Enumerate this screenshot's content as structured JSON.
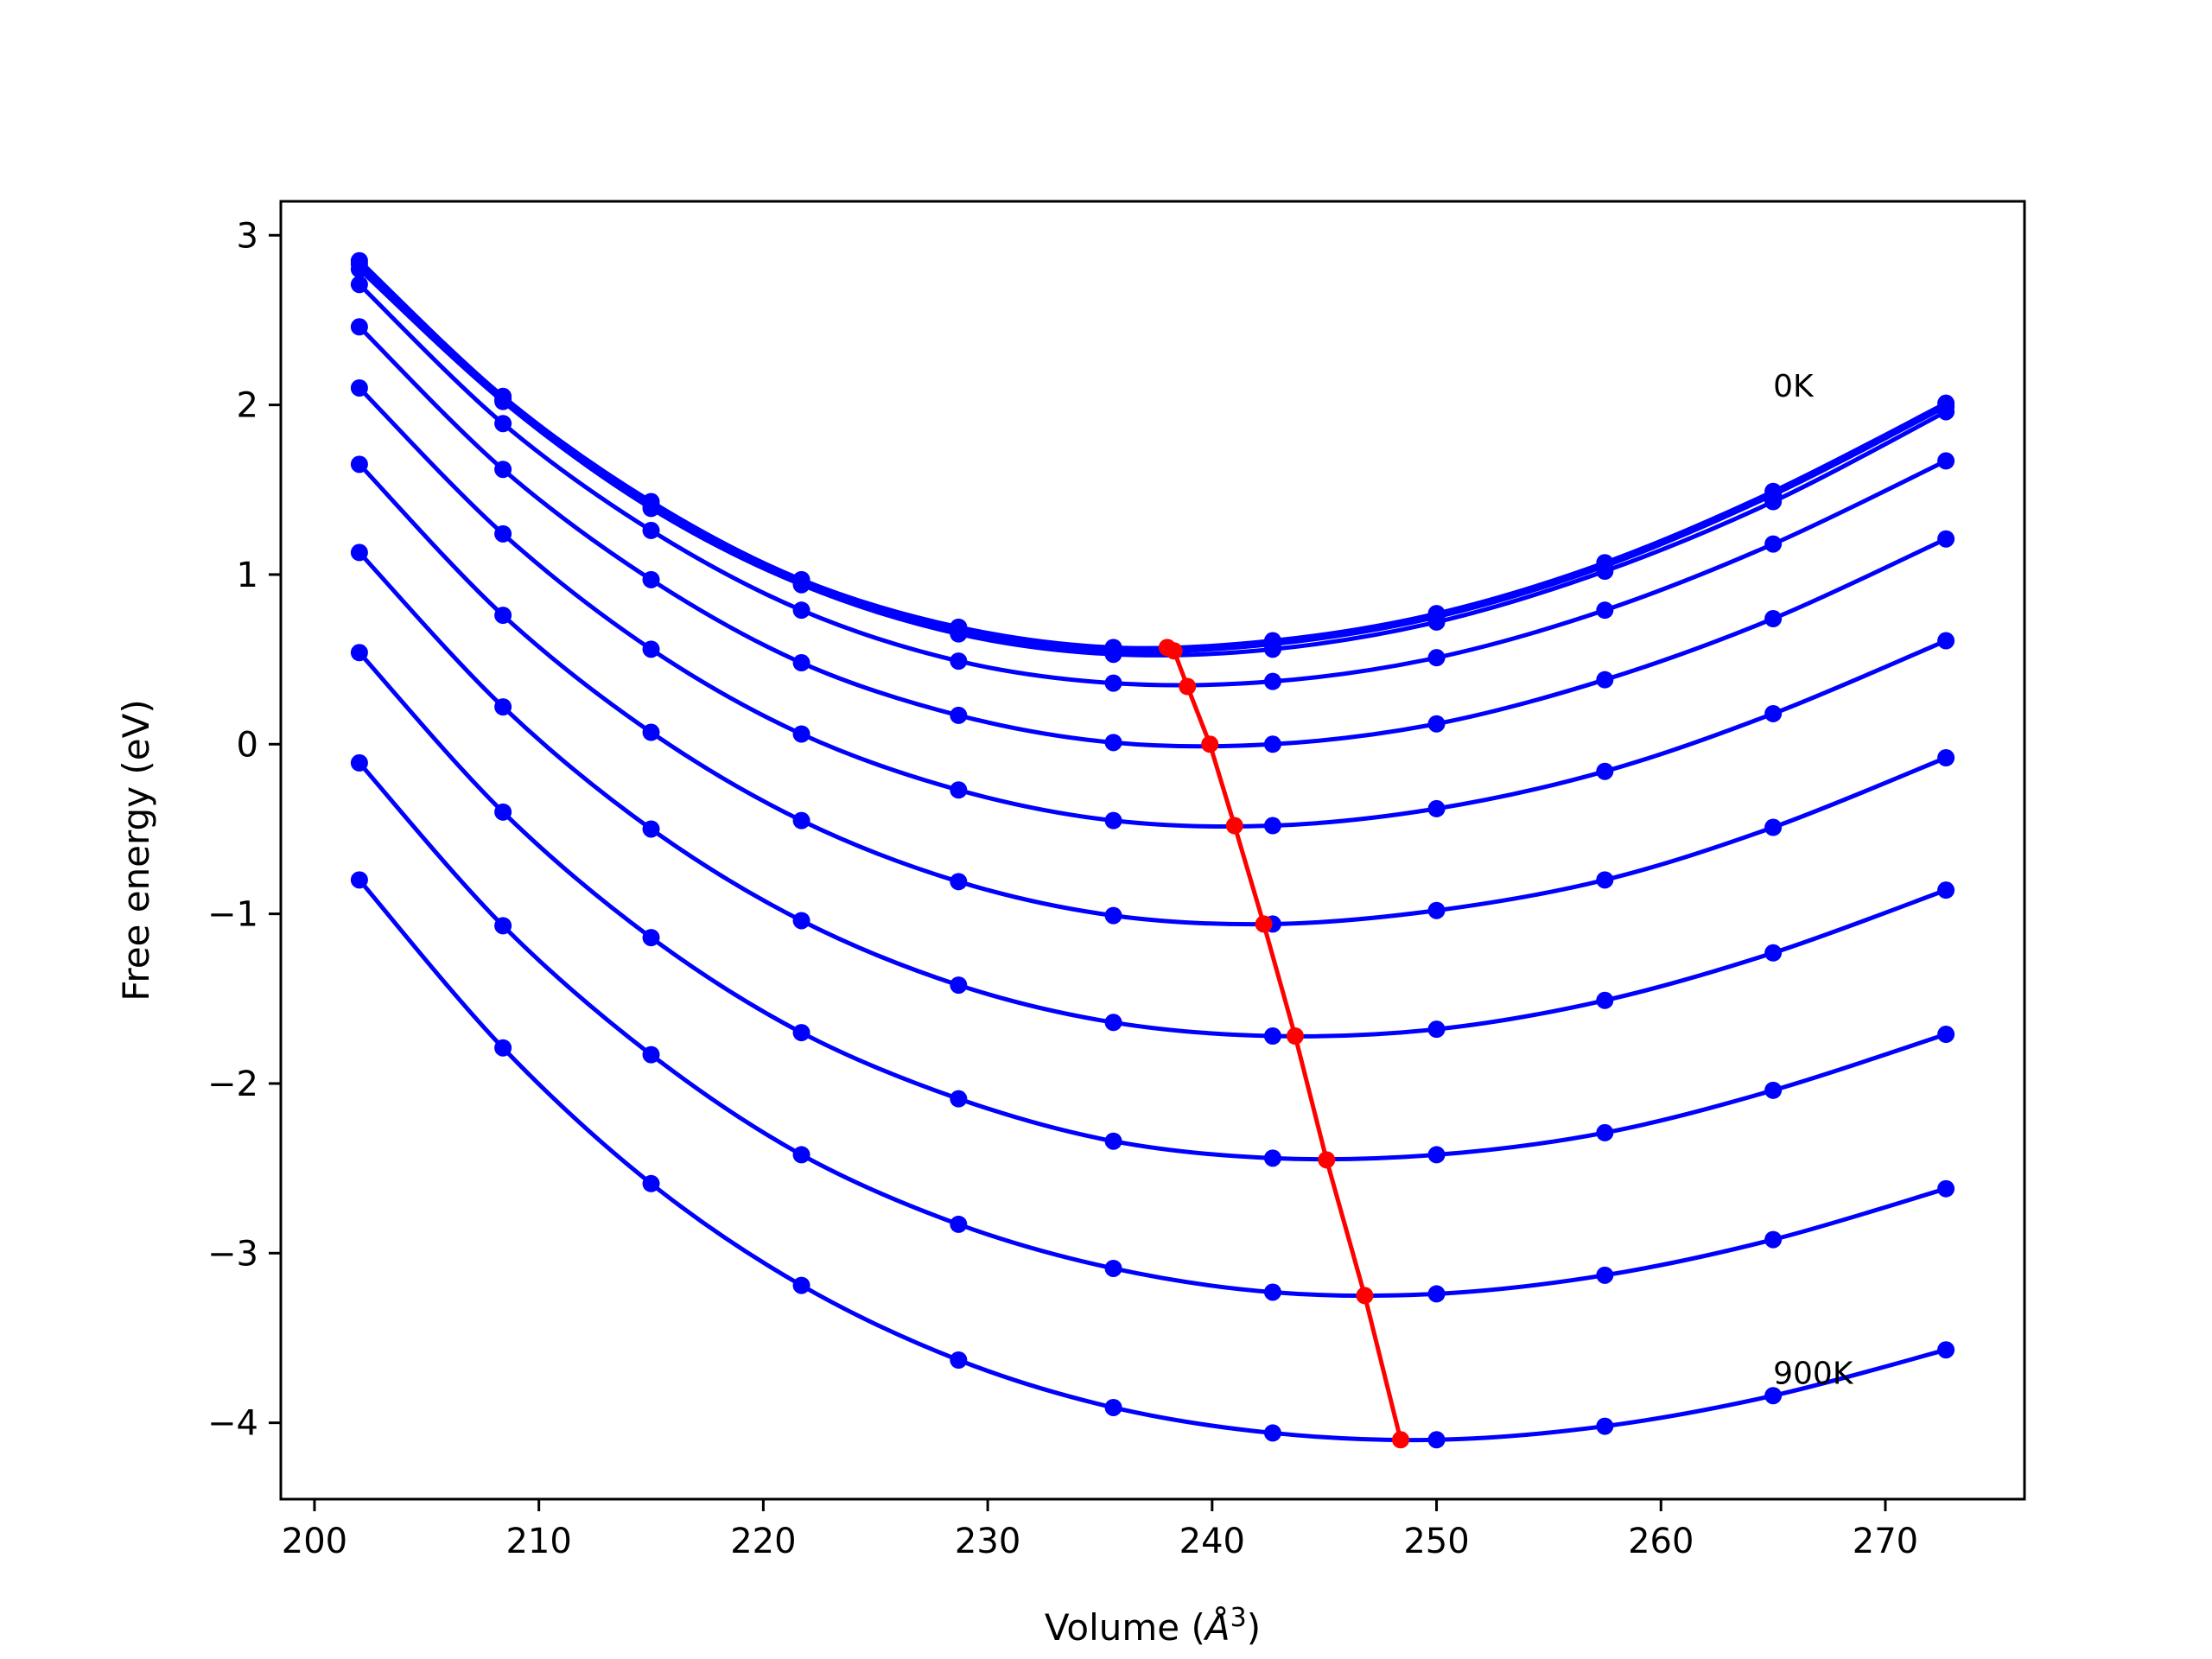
{
  "chart_data": {
    "type": "line",
    "xlabel": "Volume (",
    "xlabel_unit": "Å",
    "xlabel_exp": "3",
    "xlabel_close": ")",
    "ylabel": "Free energy (eV)",
    "xlim": [
      198.5,
      276.2
    ],
    "ylim": [
      -4.45,
      3.2
    ],
    "xticks": [
      200,
      210,
      220,
      230,
      240,
      250,
      260,
      270
    ],
    "xtick_labels": [
      "200",
      "210",
      "220",
      "230",
      "240",
      "250",
      "260",
      "270"
    ],
    "yticks": [
      -4,
      -3,
      -2,
      -1,
      0,
      1,
      2,
      3
    ],
    "ytick_labels": [
      "−4",
      "−3",
      "−2",
      "−1",
      "0",
      "1",
      "2",
      "3"
    ],
    "grid": false,
    "x": [
      202.0,
      208.4,
      215.0,
      221.7,
      228.7,
      235.6,
      242.7,
      250.0,
      257.5,
      265.0,
      272.7
    ],
    "series_color": "#0000ff",
    "series": [
      {
        "values": [
          2.85,
          2.05,
          1.43,
          0.97,
          0.69,
          0.57,
          0.61,
          0.77,
          1.07,
          1.49,
          2.01
        ]
      },
      {
        "values": [
          2.83,
          2.03,
          1.41,
          0.95,
          0.67,
          0.55,
          0.59,
          0.75,
          1.05,
          1.47,
          1.99
        ]
      },
      {
        "values": [
          2.8,
          2.02,
          1.39,
          0.94,
          0.65,
          0.53,
          0.56,
          0.72,
          1.02,
          1.43,
          1.96
        ]
      },
      {
        "values": [
          2.71,
          1.89,
          1.26,
          0.79,
          0.49,
          0.36,
          0.37,
          0.51,
          0.79,
          1.18,
          1.67
        ]
      },
      {
        "values": [
          2.46,
          1.62,
          0.97,
          0.48,
          0.17,
          0.01,
          0.0,
          0.12,
          0.38,
          0.74,
          1.21
        ]
      },
      {
        "values": [
          2.1,
          1.24,
          0.56,
          0.06,
          -0.27,
          -0.45,
          -0.48,
          -0.38,
          -0.16,
          0.18,
          0.61
        ]
      },
      {
        "values": [
          1.65,
          0.76,
          0.07,
          -0.45,
          -0.81,
          -1.01,
          -1.06,
          -0.98,
          -0.8,
          -0.49,
          -0.08
        ]
      },
      {
        "values": [
          1.13,
          0.22,
          -0.5,
          -1.04,
          -1.42,
          -1.64,
          -1.72,
          -1.68,
          -1.51,
          -1.23,
          -0.86
        ]
      },
      {
        "values": [
          0.54,
          -0.4,
          -1.14,
          -1.7,
          -2.09,
          -2.34,
          -2.44,
          -2.42,
          -2.29,
          -2.04,
          -1.71
        ]
      },
      {
        "values": [
          -0.11,
          -1.07,
          -1.83,
          -2.42,
          -2.83,
          -3.09,
          -3.23,
          -3.24,
          -3.13,
          -2.92,
          -2.62
        ]
      },
      {
        "values": [
          -0.8,
          -1.79,
          -2.59,
          -3.19,
          -3.63,
          -3.91,
          -4.06,
          -4.1,
          -4.02,
          -3.84,
          -3.57
        ]
      }
    ],
    "minimum_line": {
      "color": "#ff0000",
      "x": [
        238.0,
        238.3,
        238.9,
        239.9,
        241.0,
        242.3,
        243.7,
        245.1,
        246.8,
        248.4
      ],
      "y": [
        0.57,
        0.55,
        0.34,
        0.0,
        -0.48,
        -1.06,
        -1.72,
        -2.45,
        -3.25,
        -4.1
      ]
    },
    "annotations": [
      {
        "text": "0K",
        "x": 265.0,
        "y": 2.05
      },
      {
        "text": "900K",
        "x": 265.0,
        "y": -3.77
      }
    ]
  }
}
